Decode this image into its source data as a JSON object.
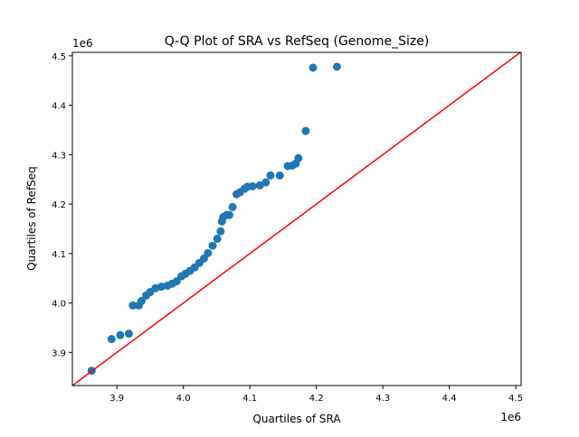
{
  "chart_data": {
    "type": "scatter",
    "title": "Q-Q Plot of SRA vs RefSeq (Genome_Size)",
    "xlabel": "Quartiles of SRA",
    "ylabel": "Quartiles of RefSeq",
    "x_offset_label": "1e6",
    "y_offset_label": "1e6",
    "xlim": [
      3.833,
      4.508
    ],
    "ylim": [
      3.833,
      4.507
    ],
    "xticks": [
      "3.9",
      "4.0",
      "4.1",
      "4.2",
      "4.3",
      "4.4",
      "4.5"
    ],
    "yticks": [
      "3.9",
      "4.0",
      "4.1",
      "4.2",
      "4.3",
      "4.4",
      "4.5"
    ],
    "grid": false,
    "point_color": "#1f77b4",
    "reference_line": {
      "type": "y=x",
      "color": "#ff0000"
    },
    "points": [
      [
        3.862,
        3.863
      ],
      [
        3.892,
        3.927
      ],
      [
        3.905,
        3.935
      ],
      [
        3.918,
        3.938
      ],
      [
        3.924,
        3.995
      ],
      [
        3.933,
        3.995
      ],
      [
        3.937,
        4.004
      ],
      [
        3.944,
        4.015
      ],
      [
        3.95,
        4.022
      ],
      [
        3.958,
        4.03
      ],
      [
        3.967,
        4.033
      ],
      [
        3.976,
        4.035
      ],
      [
        3.983,
        4.039
      ],
      [
        3.99,
        4.044
      ],
      [
        3.997,
        4.054
      ],
      [
        4.003,
        4.059
      ],
      [
        4.01,
        4.065
      ],
      [
        4.017,
        4.072
      ],
      [
        4.024,
        4.081
      ],
      [
        4.031,
        4.09
      ],
      [
        4.037,
        4.101
      ],
      [
        4.044,
        4.116
      ],
      [
        4.051,
        4.13
      ],
      [
        4.056,
        4.145
      ],
      [
        4.058,
        4.165
      ],
      [
        4.06,
        4.174
      ],
      [
        4.065,
        4.178
      ],
      [
        4.069,
        4.178
      ],
      [
        4.074,
        4.194
      ],
      [
        4.08,
        4.22
      ],
      [
        4.085,
        4.224
      ],
      [
        4.092,
        4.231
      ],
      [
        4.096,
        4.235
      ],
      [
        4.104,
        4.236
      ],
      [
        4.115,
        4.238
      ],
      [
        4.124,
        4.244
      ],
      [
        4.131,
        4.258
      ],
      [
        4.145,
        4.258
      ],
      [
        4.157,
        4.277
      ],
      [
        4.164,
        4.278
      ],
      [
        4.169,
        4.282
      ],
      [
        4.173,
        4.293
      ],
      [
        4.184,
        4.348
      ],
      [
        4.195,
        4.476
      ],
      [
        4.231,
        4.478
      ]
    ]
  }
}
